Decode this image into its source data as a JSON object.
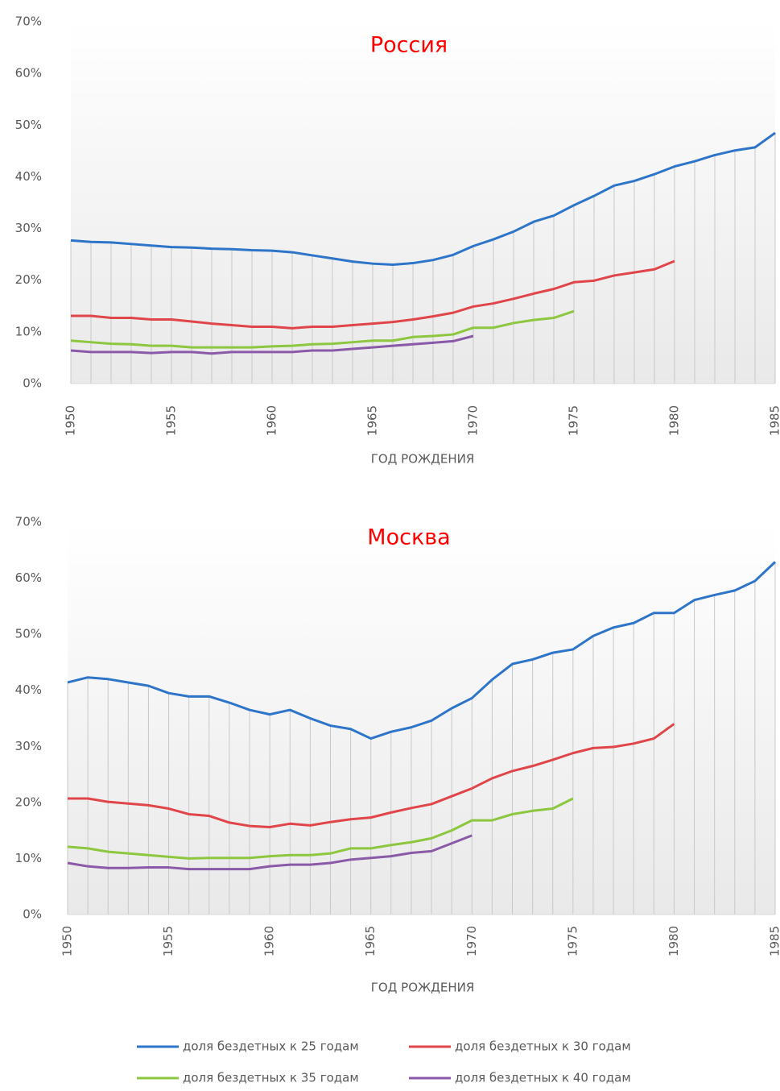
{
  "chart_data": [
    {
      "type": "line",
      "title": "Россия",
      "x_label": "ГОД РОЖДЕНИЯ",
      "x": [
        1950,
        1951,
        1952,
        1953,
        1954,
        1955,
        1956,
        1957,
        1958,
        1959,
        1960,
        1961,
        1962,
        1963,
        1964,
        1965,
        1966,
        1967,
        1968,
        1969,
        1970,
        1971,
        1972,
        1973,
        1974,
        1975,
        1976,
        1977,
        1978,
        1979,
        1980,
        1981,
        1982,
        1983,
        1984,
        1985
      ],
      "xlim": [
        1950,
        1985
      ],
      "xticks": [
        1950,
        1955,
        1960,
        1965,
        1970,
        1975,
        1980,
        1985
      ],
      "ylim": [
        0,
        70
      ],
      "yticks": [
        {
          "value": 0,
          "label": "0%"
        },
        {
          "value": 10,
          "label": "10%"
        },
        {
          "value": 20,
          "label": "20%"
        },
        {
          "value": 30,
          "label": "30%"
        },
        {
          "value": 40,
          "label": "40%"
        },
        {
          "value": 50,
          "label": "50%"
        },
        {
          "value": 60,
          "label": "60%"
        },
        {
          "value": 70,
          "label": "70%"
        }
      ],
      "drop_lines": true,
      "series": [
        {
          "name": "доля бездетных к 25 годам",
          "color": "#2e75c9",
          "values": [
            27.7,
            27.4,
            27.3,
            27.0,
            26.7,
            26.4,
            26.3,
            26.1,
            26.0,
            25.8,
            25.7,
            25.4,
            24.8,
            24.2,
            23.6,
            23.2,
            23.0,
            23.3,
            23.9,
            24.9,
            26.6,
            27.9,
            29.4,
            31.3,
            32.5,
            34.5,
            36.3,
            38.3,
            39.2,
            40.5,
            42.0,
            43.0,
            44.2,
            45.1,
            45.7,
            48.5
          ]
        },
        {
          "name": "доля бездетных к 30 годам",
          "color": "#e0454a",
          "values": [
            13.1,
            13.1,
            12.7,
            12.7,
            12.4,
            12.4,
            12.0,
            11.6,
            11.3,
            11.0,
            11.0,
            10.7,
            11.0,
            11.0,
            11.3,
            11.6,
            11.9,
            12.4,
            13.0,
            13.7,
            14.9,
            15.5,
            16.4,
            17.4,
            18.3,
            19.6,
            19.9,
            20.9,
            21.5,
            22.1,
            23.7,
            null,
            null,
            null,
            null,
            null
          ]
        },
        {
          "name": "доля бездетных к 35 годам",
          "color": "#8dc63f",
          "values": [
            8.3,
            8.0,
            7.7,
            7.6,
            7.3,
            7.3,
            7.0,
            7.0,
            7.0,
            7.0,
            7.2,
            7.3,
            7.6,
            7.7,
            8.0,
            8.3,
            8.3,
            9.0,
            9.2,
            9.5,
            10.8,
            10.8,
            11.7,
            12.3,
            12.7,
            14.0,
            null,
            null,
            null,
            null,
            null,
            null,
            null,
            null,
            null,
            null
          ]
        },
        {
          "name": "доля бездетных к 40 годам",
          "color": "#8a5aa8",
          "values": [
            6.4,
            6.1,
            6.1,
            6.1,
            5.9,
            6.1,
            6.1,
            5.8,
            6.1,
            6.1,
            6.1,
            6.1,
            6.4,
            6.4,
            6.7,
            7.0,
            7.3,
            7.6,
            7.9,
            8.2,
            9.2,
            null,
            null,
            null,
            null,
            null,
            null,
            null,
            null,
            null,
            null,
            null,
            null,
            null,
            null,
            null
          ]
        }
      ]
    },
    {
      "type": "line",
      "title": "Москва",
      "x_label": "ГОД РОЖДЕНИЯ",
      "x": [
        1950,
        1951,
        1952,
        1953,
        1954,
        1955,
        1956,
        1957,
        1958,
        1959,
        1960,
        1961,
        1962,
        1963,
        1964,
        1965,
        1966,
        1967,
        1968,
        1969,
        1970,
        1971,
        1972,
        1973,
        1974,
        1975,
        1976,
        1977,
        1978,
        1979,
        1980,
        1981,
        1982,
        1983,
        1984,
        1985
      ],
      "xlim": [
        1950,
        1985
      ],
      "xticks": [
        1950,
        1955,
        1960,
        1965,
        1970,
        1975,
        1980,
        1985
      ],
      "ylim": [
        0,
        70
      ],
      "yticks": [
        {
          "value": 0,
          "label": "0%"
        },
        {
          "value": 10,
          "label": "10%"
        },
        {
          "value": 20,
          "label": "20%"
        },
        {
          "value": 30,
          "label": "30%"
        },
        {
          "value": 40,
          "label": "40%"
        },
        {
          "value": 50,
          "label": "50%"
        },
        {
          "value": 60,
          "label": "60%"
        },
        {
          "value": 70,
          "label": "70%"
        }
      ],
      "drop_lines": true,
      "series": [
        {
          "color": "#2e75c9",
          "values": [
            41.4,
            42.3,
            42.0,
            41.4,
            40.8,
            39.5,
            38.9,
            38.9,
            37.8,
            36.5,
            35.7,
            36.5,
            35.0,
            33.7,
            33.1,
            31.4,
            32.6,
            33.4,
            34.6,
            36.8,
            38.6,
            41.9,
            44.7,
            45.5,
            46.7,
            47.3,
            49.7,
            51.2,
            52.0,
            53.8,
            53.8,
            56.1,
            57.0,
            57.8,
            59.5,
            62.9
          ]
        },
        {
          "color": "#e0454a",
          "values": [
            20.7,
            20.7,
            20.1,
            19.8,
            19.5,
            18.9,
            17.9,
            17.6,
            16.4,
            15.8,
            15.6,
            16.2,
            15.9,
            16.5,
            17.0,
            17.3,
            18.2,
            19.0,
            19.7,
            21.1,
            22.5,
            24.3,
            25.6,
            26.5,
            27.6,
            28.8,
            29.7,
            29.9,
            30.5,
            31.4,
            34.0,
            null,
            null,
            null,
            null,
            null
          ]
        },
        {
          "color": "#8dc63f",
          "values": [
            12.1,
            11.8,
            11.2,
            10.9,
            10.6,
            10.3,
            10.0,
            10.1,
            10.1,
            10.1,
            10.4,
            10.6,
            10.6,
            10.9,
            11.8,
            11.8,
            12.4,
            12.9,
            13.6,
            15.0,
            16.8,
            16.8,
            17.9,
            18.5,
            18.9,
            20.7,
            null,
            null,
            null,
            null,
            null,
            null,
            null,
            null,
            null,
            null
          ]
        },
        {
          "color": "#8a5aa8",
          "values": [
            9.2,
            8.6,
            8.3,
            8.3,
            8.4,
            8.4,
            8.1,
            8.1,
            8.1,
            8.1,
            8.6,
            8.9,
            8.9,
            9.2,
            9.8,
            10.1,
            10.4,
            11.0,
            11.3,
            12.7,
            14.1,
            null,
            null,
            null,
            null,
            null,
            null,
            null,
            null,
            null,
            null,
            null,
            null,
            null,
            null,
            null
          ]
        }
      ]
    }
  ]
}
